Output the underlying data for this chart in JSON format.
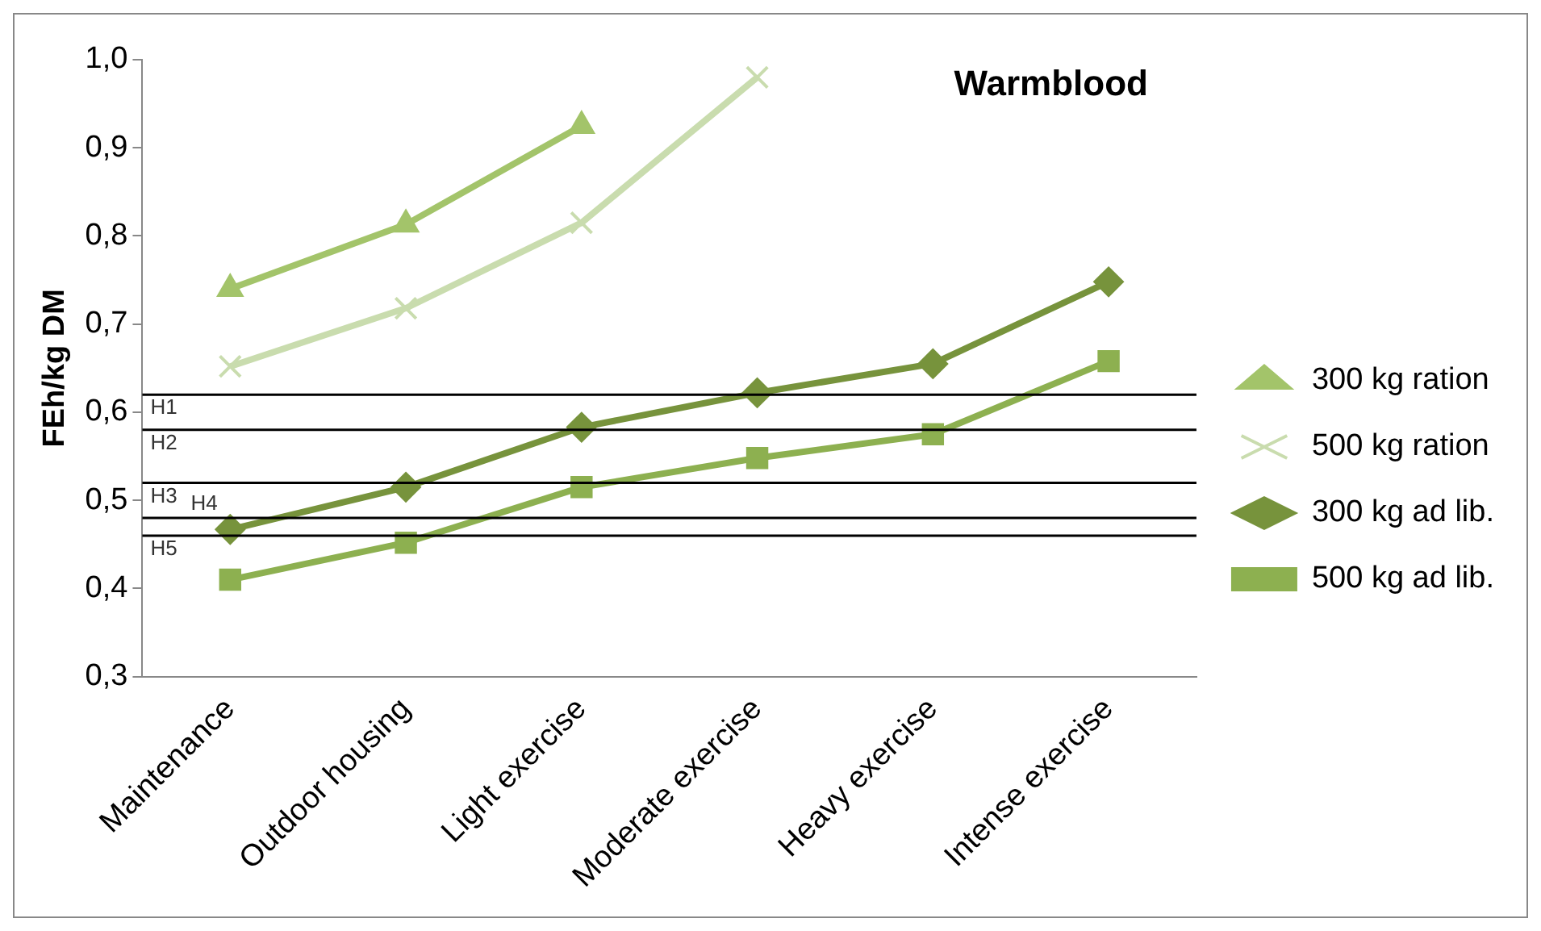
{
  "chart_data": {
    "type": "line",
    "title": "Warmblood",
    "ylabel": "FEh/kg DM",
    "categories": [
      "Maintenance",
      "Outdoor housing",
      "Light exercise",
      "Moderate exercise",
      "Heavy exercise",
      "Intense exercise"
    ],
    "series": [
      {
        "name": "300 kg ration",
        "color": "#a3c46a",
        "marker": "triangle",
        "values": [
          0.74,
          0.813,
          0.925,
          null,
          null,
          null
        ]
      },
      {
        "name": "500 kg ration",
        "color": "#c9dcae",
        "marker": "cross",
        "values": [
          0.652,
          0.718,
          0.815,
          0.98,
          null,
          null
        ]
      },
      {
        "name": "300 kg ad lib.",
        "color": "#77933c",
        "marker": "diamond",
        "values": [
          0.467,
          0.515,
          0.583,
          0.622,
          0.655,
          0.748
        ]
      },
      {
        "name": "500 kg ad lib.",
        "color": "#8db050",
        "marker": "square",
        "values": [
          0.41,
          0.452,
          0.515,
          0.548,
          0.575,
          0.658
        ]
      }
    ],
    "ylim": [
      0.3,
      1.0
    ],
    "yticks": [
      {
        "value": 0.3,
        "label": "0,3"
      },
      {
        "value": 0.4,
        "label": "0,4"
      },
      {
        "value": 0.5,
        "label": "0,5"
      },
      {
        "value": 0.6,
        "label": "0,6"
      },
      {
        "value": 0.7,
        "label": "0,7"
      },
      {
        "value": 0.8,
        "label": "0,8"
      },
      {
        "value": 0.9,
        "label": "0,9"
      },
      {
        "value": 1.0,
        "label": "1,0"
      }
    ],
    "ref_lines": [
      {
        "axis": "y",
        "value": 0.62,
        "label": "H1",
        "color": "#000000"
      },
      {
        "axis": "y",
        "value": 0.58,
        "label": "H2",
        "color": "#000000"
      },
      {
        "axis": "y",
        "value": 0.52,
        "label": "H3",
        "color": "#000000"
      },
      {
        "axis": "y",
        "value": 0.48,
        "label": "H4",
        "color": "#000000"
      },
      {
        "axis": "y",
        "value": 0.46,
        "label": "H5",
        "color": "#000000"
      }
    ],
    "grid": false,
    "legend": "right",
    "line_style": "solid"
  }
}
